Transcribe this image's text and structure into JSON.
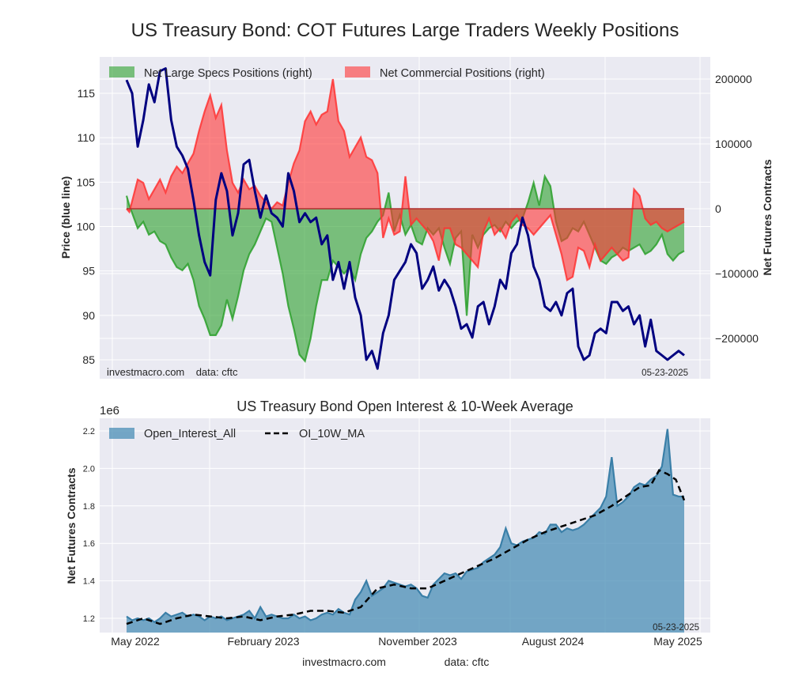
{
  "chart_data": [
    {
      "type": "area",
      "title": "US Treasury Bond: COT Futures Large Traders Weekly Positions",
      "ylabel_left": "Price (blue line)",
      "ylabel_right": "Net Futures Contracts",
      "ylim_left": [
        83.5,
        118.5
      ],
      "ylim_right": [
        -260000,
        225000
      ],
      "yticks_left": [
        85,
        90,
        95,
        100,
        105,
        110,
        115
      ],
      "yticks_right": [
        "200000",
        "100000",
        "0",
        "−100000",
        "−200000"
      ],
      "yticks_right_values": [
        200000,
        100000,
        0,
        -100000,
        -200000
      ],
      "x_range": [
        "2022-05-03",
        "2025-05-20"
      ],
      "grid": true,
      "legend": "top-left",
      "watermark": "investmacro.com    data: cftc",
      "date_stamp": "05-23-2025",
      "series": [
        {
          "name": "Net Large Specs Positions (right)",
          "kind": "area",
          "color": "#2ca02c",
          "x": [
            0,
            0.005,
            0.02,
            0.03,
            0.04,
            0.05,
            0.06,
            0.07,
            0.08,
            0.09,
            0.1,
            0.11,
            0.12,
            0.13,
            0.14,
            0.15,
            0.16,
            0.17,
            0.18,
            0.19,
            0.2,
            0.21,
            0.22,
            0.23,
            0.24,
            0.25,
            0.26,
            0.27,
            0.28,
            0.29,
            0.3,
            0.31,
            0.32,
            0.33,
            0.34,
            0.35,
            0.36,
            0.37,
            0.38,
            0.39,
            0.4,
            0.41,
            0.42,
            0.43,
            0.44,
            0.45,
            0.46,
            0.47,
            0.48,
            0.49,
            0.5,
            0.51,
            0.52,
            0.53,
            0.54,
            0.55,
            0.56,
            0.57,
            0.58,
            0.59,
            0.6,
            0.61,
            0.62,
            0.63,
            0.64,
            0.65,
            0.66,
            0.67,
            0.68,
            0.69,
            0.7,
            0.71,
            0.72,
            0.73,
            0.74,
            0.75,
            0.76,
            0.77,
            0.78,
            0.79,
            0.8,
            0.81,
            0.82,
            0.83,
            0.84,
            0.85,
            0.86,
            0.87,
            0.88,
            0.89,
            0.9,
            0.91,
            0.92,
            0.93,
            0.94,
            0.95,
            0.96,
            0.97,
            0.98,
            0.99,
            1
          ],
          "values": [
            20000,
            5000,
            -30000,
            -20000,
            -40000,
            -35000,
            -50000,
            -55000,
            -75000,
            -90000,
            -95000,
            -85000,
            -110000,
            -150000,
            -170000,
            -195000,
            -195000,
            -180000,
            -140000,
            -170000,
            -135000,
            -95000,
            -70000,
            -55000,
            -35000,
            -15000,
            -20000,
            -60000,
            -100000,
            -150000,
            -185000,
            -225000,
            -235000,
            -200000,
            -150000,
            -110000,
            -110000,
            -80000,
            -90000,
            -100000,
            -90000,
            -110000,
            -70000,
            -45000,
            -35000,
            -20000,
            -10000,
            25000,
            -35000,
            -10000,
            -40000,
            -25000,
            -50000,
            -55000,
            -30000,
            -40000,
            -30000,
            -60000,
            -85000,
            -45000,
            -35000,
            -165000,
            -40000,
            -60000,
            -40000,
            -30000,
            -25000,
            -35000,
            -20000,
            -30000,
            -20000,
            -15000,
            10000,
            40000,
            5000,
            50000,
            35000,
            -20000,
            -50000,
            -45000,
            -30000,
            -35000,
            -20000,
            -40000,
            -60000,
            -80000,
            -85000,
            -75000,
            -70000,
            -60000,
            -65000,
            -60000,
            -55000,
            -70000,
            -65000,
            -55000,
            -40000,
            -70000,
            -80000,
            -70000,
            -65000
          ]
        },
        {
          "name": "Net Commercial Positions (right)",
          "kind": "area",
          "color": "#ff3333",
          "x": [
            0,
            0.005,
            0.02,
            0.03,
            0.04,
            0.05,
            0.06,
            0.07,
            0.08,
            0.09,
            0.1,
            0.11,
            0.12,
            0.13,
            0.14,
            0.15,
            0.16,
            0.17,
            0.18,
            0.19,
            0.2,
            0.21,
            0.22,
            0.23,
            0.24,
            0.25,
            0.26,
            0.27,
            0.28,
            0.29,
            0.3,
            0.31,
            0.32,
            0.33,
            0.34,
            0.35,
            0.36,
            0.37,
            0.38,
            0.39,
            0.4,
            0.41,
            0.42,
            0.43,
            0.44,
            0.45,
            0.46,
            0.47,
            0.48,
            0.49,
            0.5,
            0.51,
            0.52,
            0.53,
            0.54,
            0.55,
            0.56,
            0.57,
            0.58,
            0.59,
            0.6,
            0.61,
            0.62,
            0.63,
            0.64,
            0.65,
            0.66,
            0.67,
            0.68,
            0.69,
            0.7,
            0.71,
            0.72,
            0.73,
            0.74,
            0.75,
            0.76,
            0.77,
            0.78,
            0.79,
            0.8,
            0.81,
            0.82,
            0.83,
            0.84,
            0.85,
            0.86,
            0.87,
            0.88,
            0.89,
            0.9,
            0.91,
            0.92,
            0.93,
            0.94,
            0.95,
            0.96,
            0.97,
            0.98,
            0.99,
            1
          ],
          "values": [
            0,
            -5000,
            45000,
            40000,
            15000,
            30000,
            45000,
            25000,
            50000,
            65000,
            55000,
            70000,
            85000,
            120000,
            150000,
            175000,
            140000,
            160000,
            90000,
            40000,
            25000,
            45000,
            30000,
            35000,
            20000,
            10000,
            0,
            10000,
            5000,
            40000,
            70000,
            90000,
            135000,
            150000,
            130000,
            145000,
            150000,
            200000,
            135000,
            120000,
            80000,
            95000,
            110000,
            80000,
            75000,
            55000,
            -45000,
            -15000,
            -40000,
            -35000,
            50000,
            -25000,
            -15000,
            -25000,
            -35000,
            -50000,
            -80000,
            -30000,
            -30000,
            -55000,
            -60000,
            -70000,
            -80000,
            -90000,
            -35000,
            -15000,
            -40000,
            -30000,
            -45000,
            -20000,
            -10000,
            -25000,
            -30000,
            -40000,
            -30000,
            -20000,
            -10000,
            -40000,
            -70000,
            -110000,
            -105000,
            -60000,
            -65000,
            -90000,
            -55000,
            -80000,
            -70000,
            -60000,
            -70000,
            -80000,
            -75000,
            30000,
            20000,
            -15000,
            -25000,
            -20000,
            -30000,
            -35000,
            -30000,
            -25000,
            -20000
          ]
        },
        {
          "name": "Price (blue line)",
          "kind": "line",
          "color": "#000080",
          "x": [
            0,
            0.01,
            0.02,
            0.03,
            0.04,
            0.05,
            0.06,
            0.07,
            0.08,
            0.09,
            0.1,
            0.11,
            0.12,
            0.13,
            0.14,
            0.15,
            0.16,
            0.17,
            0.18,
            0.19,
            0.2,
            0.21,
            0.22,
            0.23,
            0.24,
            0.25,
            0.26,
            0.27,
            0.28,
            0.29,
            0.3,
            0.31,
            0.32,
            0.33,
            0.34,
            0.35,
            0.36,
            0.37,
            0.38,
            0.39,
            0.4,
            0.41,
            0.42,
            0.43,
            0.44,
            0.45,
            0.46,
            0.47,
            0.48,
            0.49,
            0.5,
            0.51,
            0.52,
            0.53,
            0.54,
            0.55,
            0.56,
            0.57,
            0.58,
            0.59,
            0.6,
            0.61,
            0.62,
            0.63,
            0.64,
            0.65,
            0.66,
            0.67,
            0.68,
            0.69,
            0.7,
            0.71,
            0.72,
            0.73,
            0.74,
            0.75,
            0.76,
            0.77,
            0.78,
            0.79,
            0.8,
            0.81,
            0.82,
            0.83,
            0.84,
            0.85,
            0.86,
            0.87,
            0.88,
            0.89,
            0.9,
            0.91,
            0.92,
            0.93,
            0.94,
            0.95,
            0.96,
            0.97,
            0.98,
            0.99,
            1
          ],
          "values": [
            116.5,
            115,
            109,
            112,
            116,
            114,
            117.5,
            117.8,
            112,
            109,
            108,
            106.5,
            103,
            99,
            96,
            94.5,
            103,
            106,
            104,
            99,
            101.5,
            107,
            107.5,
            104,
            101,
            103.5,
            101.5,
            101,
            100,
            106,
            104,
            100.5,
            101.5,
            100.5,
            101,
            98,
            99,
            94,
            96,
            93,
            96,
            92,
            90,
            85,
            86,
            84,
            88,
            90,
            94,
            95,
            96,
            98,
            97,
            93,
            94,
            95.5,
            92.8,
            94,
            93,
            91,
            88.5,
            89,
            87.5,
            91,
            91.5,
            89,
            91,
            94,
            93,
            97,
            98,
            101,
            99,
            95.5,
            94,
            91,
            90.5,
            91.5,
            90,
            92.5,
            93,
            86.5,
            85,
            85.5,
            88,
            88.5,
            88,
            91.5,
            91.5,
            90.5,
            91,
            89,
            90,
            86.5,
            89.5,
            86,
            85.5,
            85,
            85.5,
            86,
            85.5
          ]
        }
      ]
    },
    {
      "type": "area",
      "title": "US Treasury Bond Open Interest & 10-Week Average",
      "ylabel": "Net Futures Contracts",
      "y_scale_label": "1e6",
      "ylim": [
        1.15,
        2.25
      ],
      "yticks": [
        "1.2",
        "1.4",
        "1.6",
        "1.8",
        "2.0",
        "2.2"
      ],
      "yticks_values": [
        1.2,
        1.4,
        1.6,
        1.8,
        2.0,
        2.2
      ],
      "xticks": [
        "May 2022",
        "February 2023",
        "November 2023",
        "August 2024",
        "May 2025"
      ],
      "xticks_pos": [
        0.0,
        0.232,
        0.49,
        0.735,
        0.97
      ],
      "grid": true,
      "legend": "top-left",
      "date_stamp": "05-23-2025",
      "series": [
        {
          "name": "Open_Interest_All",
          "kind": "area",
          "color": "#4a8db6",
          "x": [
            0,
            0.01,
            0.02,
            0.03,
            0.04,
            0.05,
            0.06,
            0.07,
            0.08,
            0.09,
            0.1,
            0.11,
            0.12,
            0.13,
            0.14,
            0.15,
            0.16,
            0.17,
            0.18,
            0.19,
            0.2,
            0.21,
            0.22,
            0.23,
            0.24,
            0.25,
            0.26,
            0.27,
            0.28,
            0.29,
            0.3,
            0.31,
            0.32,
            0.33,
            0.34,
            0.35,
            0.36,
            0.37,
            0.38,
            0.39,
            0.4,
            0.41,
            0.42,
            0.43,
            0.44,
            0.45,
            0.46,
            0.47,
            0.48,
            0.49,
            0.5,
            0.51,
            0.52,
            0.53,
            0.54,
            0.55,
            0.56,
            0.57,
            0.58,
            0.59,
            0.6,
            0.61,
            0.62,
            0.63,
            0.64,
            0.65,
            0.66,
            0.67,
            0.68,
            0.69,
            0.7,
            0.71,
            0.72,
            0.73,
            0.74,
            0.75,
            0.76,
            0.77,
            0.78,
            0.79,
            0.8,
            0.81,
            0.82,
            0.83,
            0.84,
            0.85,
            0.86,
            0.87,
            0.88,
            0.89,
            0.9,
            0.91,
            0.92,
            0.93,
            0.94,
            0.95,
            0.96,
            0.97,
            0.98,
            0.99,
            1
          ],
          "values": [
            1.21,
            1.19,
            1.2,
            1.19,
            1.2,
            1.18,
            1.2,
            1.23,
            1.21,
            1.22,
            1.23,
            1.21,
            1.22,
            1.21,
            1.19,
            1.21,
            1.2,
            1.21,
            1.19,
            1.2,
            1.21,
            1.22,
            1.24,
            1.2,
            1.26,
            1.21,
            1.22,
            1.21,
            1.2,
            1.2,
            1.22,
            1.2,
            1.21,
            1.19,
            1.2,
            1.22,
            1.23,
            1.22,
            1.25,
            1.23,
            1.22,
            1.3,
            1.34,
            1.4,
            1.32,
            1.34,
            1.36,
            1.4,
            1.39,
            1.38,
            1.37,
            1.38,
            1.36,
            1.32,
            1.31,
            1.38,
            1.41,
            1.44,
            1.43,
            1.44,
            1.41,
            1.45,
            1.46,
            1.47,
            1.5,
            1.52,
            1.54,
            1.58,
            1.68,
            1.6,
            1.59,
            1.61,
            1.62,
            1.63,
            1.66,
            1.65,
            1.7,
            1.7,
            1.66,
            1.68,
            1.67,
            1.68,
            1.7,
            1.73,
            1.76,
            1.79,
            1.85,
            2.06,
            1.8,
            1.82,
            1.85,
            1.9,
            1.92,
            1.91,
            1.94,
            1.96,
            2.01,
            2.21,
            1.86,
            1.85,
            1.85
          ]
        },
        {
          "name": "OI_10W_MA",
          "kind": "dashed-line",
          "color": "#000000",
          "x": [
            0,
            0.03,
            0.06,
            0.09,
            0.12,
            0.15,
            0.18,
            0.21,
            0.24,
            0.27,
            0.3,
            0.33,
            0.36,
            0.39,
            0.42,
            0.45,
            0.48,
            0.51,
            0.54,
            0.57,
            0.6,
            0.63,
            0.66,
            0.69,
            0.72,
            0.75,
            0.78,
            0.81,
            0.84,
            0.87,
            0.9,
            0.92,
            0.94,
            0.955,
            0.97,
            0.985,
            1
          ],
          "values": [
            1.17,
            1.2,
            1.17,
            1.2,
            1.22,
            1.21,
            1.2,
            1.21,
            1.19,
            1.21,
            1.22,
            1.24,
            1.24,
            1.23,
            1.26,
            1.36,
            1.38,
            1.36,
            1.36,
            1.4,
            1.44,
            1.48,
            1.52,
            1.57,
            1.62,
            1.66,
            1.69,
            1.72,
            1.75,
            1.8,
            1.86,
            1.9,
            1.91,
            1.99,
            1.97,
            1.94,
            1.83
          ]
        }
      ]
    }
  ],
  "footer": {
    "site": "investmacro.com",
    "source": "data: cftc"
  }
}
